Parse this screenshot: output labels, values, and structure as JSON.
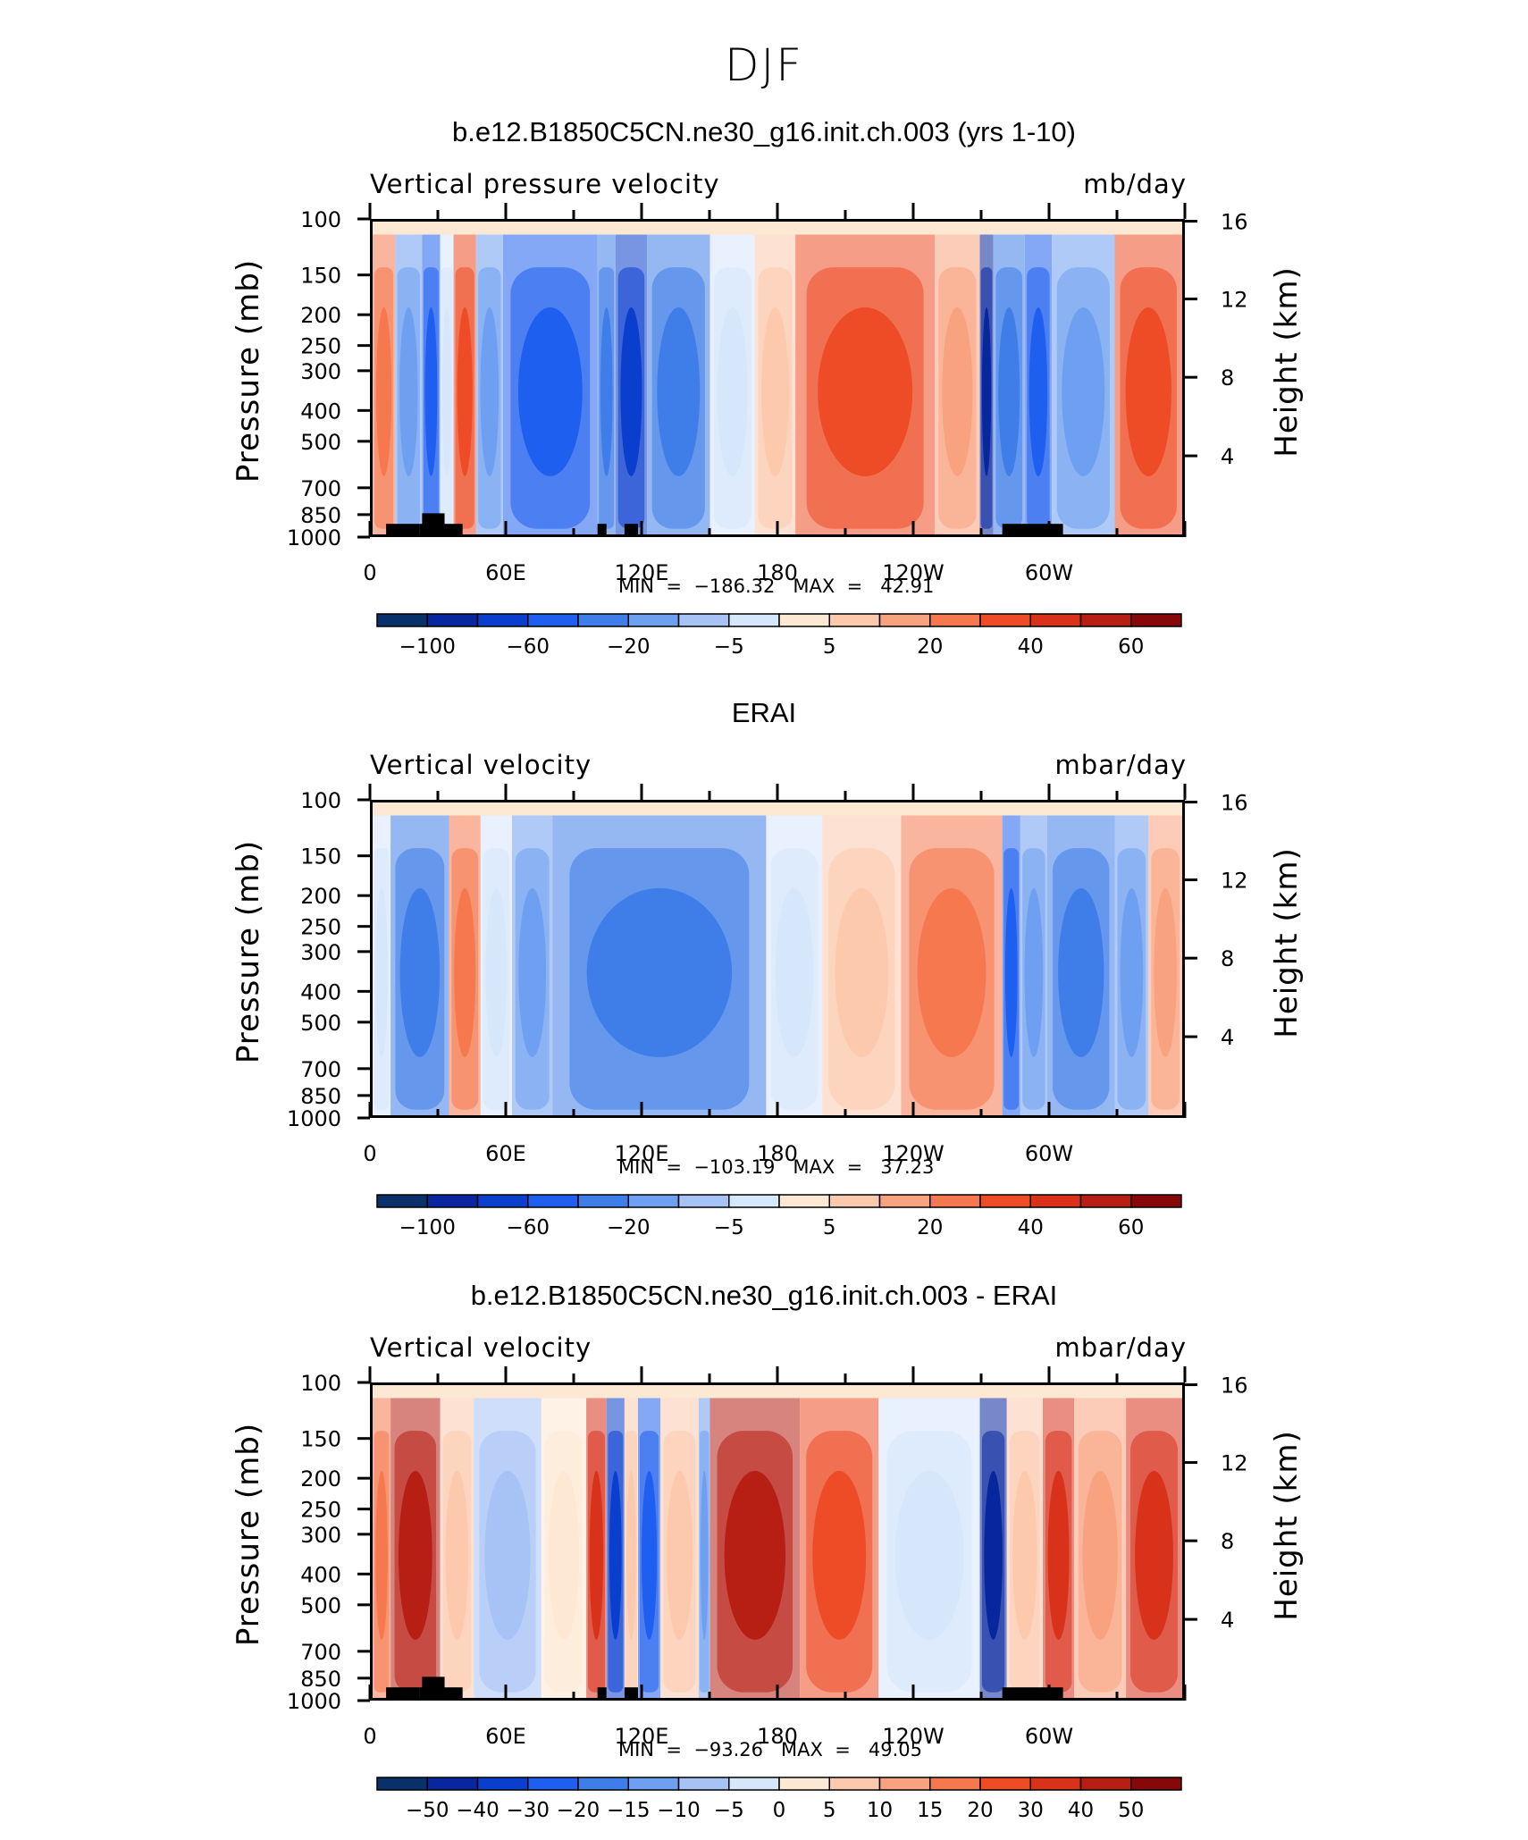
{
  "page": {
    "title": "DJF"
  },
  "colorbars": {
    "full": {
      "colors": [
        "#08306b",
        "#08279f",
        "#0a3fce",
        "#1f5fef",
        "#3f7ee9",
        "#6e9ff0",
        "#a7c3f6",
        "#d6e6fb",
        "#fde8d4",
        "#fcc9ad",
        "#f9a27f",
        "#f6784f",
        "#ee4c26",
        "#d8321b",
        "#b71e14",
        "#870808"
      ],
      "labels": [
        {
          "after": 1,
          "text": "−100"
        },
        {
          "after": 3,
          "text": "−60"
        },
        {
          "after": 5,
          "text": "−20"
        },
        {
          "after": 7,
          "text": "−5"
        },
        {
          "after": 9,
          "text": "5"
        },
        {
          "after": 11,
          "text": "20"
        },
        {
          "after": 13,
          "text": "40"
        },
        {
          "after": 15,
          "text": "60"
        }
      ]
    },
    "diff": {
      "colors": [
        "#08306b",
        "#08279f",
        "#0a3fce",
        "#1f5fef",
        "#3f7ee9",
        "#6e9ff0",
        "#a7c3f6",
        "#d6e6fb",
        "#fde8d4",
        "#fcc9ad",
        "#f9a27f",
        "#f6784f",
        "#ee4c26",
        "#d8321b",
        "#b71e14",
        "#870808"
      ],
      "labels": [
        {
          "after": 1,
          "text": "−50"
        },
        {
          "after": 2,
          "text": "−40"
        },
        {
          "after": 3,
          "text": "−30"
        },
        {
          "after": 4,
          "text": "−20"
        },
        {
          "after": 5,
          "text": "−15"
        },
        {
          "after": 6,
          "text": "−10"
        },
        {
          "after": 7,
          "text": "−5"
        },
        {
          "after": 8,
          "text": "0"
        },
        {
          "after": 9,
          "text": "5"
        },
        {
          "after": 10,
          "text": "10"
        },
        {
          "after": 11,
          "text": "15"
        },
        {
          "after": 12,
          "text": "20"
        },
        {
          "after": 13,
          "text": "30"
        },
        {
          "after": 14,
          "text": "40"
        },
        {
          "after": 15,
          "text": "50"
        }
      ]
    }
  },
  "chart_data": [
    {
      "type": "heatmap",
      "title": "b.e12.B1850C5CN.ne30_g16.init.ch.003 (yrs 1-10)",
      "variable": "Vertical pressure velocity",
      "units": "mb/day",
      "ylabel": "Pressure (mb)",
      "ylabel_right": "Height (km)",
      "y_ticks": [
        "100",
        "150",
        "200",
        "250",
        "300",
        "400",
        "500",
        "700",
        "850",
        "1000"
      ],
      "y_ticks_right": [
        "16",
        "12",
        "8",
        "4"
      ],
      "x_ticks": [
        "0",
        "60E",
        "120E",
        "180",
        "120W",
        "60W"
      ],
      "xlim": [
        0,
        360
      ],
      "ylim": [
        1000,
        100
      ],
      "min_label": "MIN  =  −186.32   MAX  =   42.91",
      "min": -186.32,
      "max": 42.91,
      "colorbar": "full",
      "topography": true,
      "bands": [
        {
          "lon": [
            0,
            10
          ],
          "value": 20
        },
        {
          "lon": [
            10,
            22
          ],
          "value": -20
        },
        {
          "lon": [
            22,
            30
          ],
          "value": -60
        },
        {
          "lon": [
            30,
            36
          ],
          "value": -5
        },
        {
          "lon": [
            36,
            46
          ],
          "value": 30
        },
        {
          "lon": [
            46,
            58
          ],
          "value": -20
        },
        {
          "lon": [
            58,
            100
          ],
          "value": -60
        },
        {
          "lon": [
            100,
            108
          ],
          "value": -40
        },
        {
          "lon": [
            108,
            122
          ],
          "value": -80
        },
        {
          "lon": [
            122,
            150
          ],
          "value": -40
        },
        {
          "lon": [
            150,
            170
          ],
          "value": -5
        },
        {
          "lon": [
            170,
            188
          ],
          "value": 5
        },
        {
          "lon": [
            188,
            250
          ],
          "value": 30
        },
        {
          "lon": [
            250,
            270
          ],
          "value": 10
        },
        {
          "lon": [
            270,
            276
          ],
          "value": -100
        },
        {
          "lon": [
            276,
            290
          ],
          "value": -40
        },
        {
          "lon": [
            290,
            302
          ],
          "value": -60
        },
        {
          "lon": [
            302,
            330
          ],
          "value": -20
        },
        {
          "lon": [
            330,
            360
          ],
          "value": 30
        }
      ]
    },
    {
      "type": "heatmap",
      "title": "ERAI",
      "variable": "Vertical velocity",
      "units": "mbar/day",
      "ylabel": "Pressure (mb)",
      "ylabel_right": "Height (km)",
      "y_ticks": [
        "100",
        "150",
        "200",
        "250",
        "300",
        "400",
        "500",
        "700",
        "850",
        "1000"
      ],
      "y_ticks_right": [
        "16",
        "12",
        "8",
        "4"
      ],
      "x_ticks": [
        "0",
        "60E",
        "120E",
        "180",
        "120W",
        "60W"
      ],
      "xlim": [
        0,
        360
      ],
      "ylim": [
        1000,
        100
      ],
      "min_label": "MIN  =  −103.19   MAX  =   37.23",
      "min": -103.19,
      "max": 37.23,
      "colorbar": "full",
      "topography": false,
      "bands": [
        {
          "lon": [
            0,
            8
          ],
          "value": -5
        },
        {
          "lon": [
            8,
            34
          ],
          "value": -40
        },
        {
          "lon": [
            34,
            48
          ],
          "value": 20
        },
        {
          "lon": [
            48,
            62
          ],
          "value": -5
        },
        {
          "lon": [
            62,
            80
          ],
          "value": -20
        },
        {
          "lon": [
            80,
            175
          ],
          "value": -40
        },
        {
          "lon": [
            175,
            200
          ],
          "value": -5
        },
        {
          "lon": [
            200,
            235
          ],
          "value": 5
        },
        {
          "lon": [
            235,
            280
          ],
          "value": 20
        },
        {
          "lon": [
            280,
            288
          ],
          "value": -60
        },
        {
          "lon": [
            288,
            300
          ],
          "value": -20
        },
        {
          "lon": [
            300,
            330
          ],
          "value": -40
        },
        {
          "lon": [
            330,
            345
          ],
          "value": -20
        },
        {
          "lon": [
            345,
            360
          ],
          "value": 10
        }
      ]
    },
    {
      "type": "heatmap",
      "title": "b.e12.B1850C5CN.ne30_g16.init.ch.003 - ERAI",
      "variable": "Vertical velocity",
      "units": "mbar/day",
      "ylabel": "Pressure (mb)",
      "ylabel_right": "Height (km)",
      "y_ticks": [
        "100",
        "150",
        "200",
        "250",
        "300",
        "400",
        "500",
        "700",
        "850",
        "1000"
      ],
      "y_ticks_right": [
        "16",
        "12",
        "8",
        "4"
      ],
      "x_ticks": [
        "0",
        "60E",
        "120E",
        "180",
        "120W",
        "60W"
      ],
      "xlim": [
        0,
        360
      ],
      "ylim": [
        1000,
        100
      ],
      "min_label": "MIN  =  −93.26   MAX  =   49.05",
      "min": -93.26,
      "max": 49.05,
      "colorbar": "diff",
      "topography": true,
      "bands": [
        {
          "lon": [
            0,
            8
          ],
          "value": 15
        },
        {
          "lon": [
            8,
            30
          ],
          "value": 40
        },
        {
          "lon": [
            30,
            45
          ],
          "value": 5
        },
        {
          "lon": [
            45,
            75
          ],
          "value": -10
        },
        {
          "lon": [
            75,
            95
          ],
          "value": 0
        },
        {
          "lon": [
            95,
            104
          ],
          "value": 30
        },
        {
          "lon": [
            104,
            112
          ],
          "value": -40
        },
        {
          "lon": [
            112,
            118
          ],
          "value": 5
        },
        {
          "lon": [
            118,
            128
          ],
          "value": -30
        },
        {
          "lon": [
            128,
            145
          ],
          "value": 5
        },
        {
          "lon": [
            145,
            150
          ],
          "value": -15
        },
        {
          "lon": [
            150,
            190
          ],
          "value": 40
        },
        {
          "lon": [
            190,
            225
          ],
          "value": 20
        },
        {
          "lon": [
            225,
            270
          ],
          "value": -5
        },
        {
          "lon": [
            270,
            282
          ],
          "value": -50
        },
        {
          "lon": [
            282,
            298
          ],
          "value": 5
        },
        {
          "lon": [
            298,
            312
          ],
          "value": 30
        },
        {
          "lon": [
            312,
            335
          ],
          "value": 10
        },
        {
          "lon": [
            335,
            360
          ],
          "value": 30
        }
      ]
    }
  ]
}
